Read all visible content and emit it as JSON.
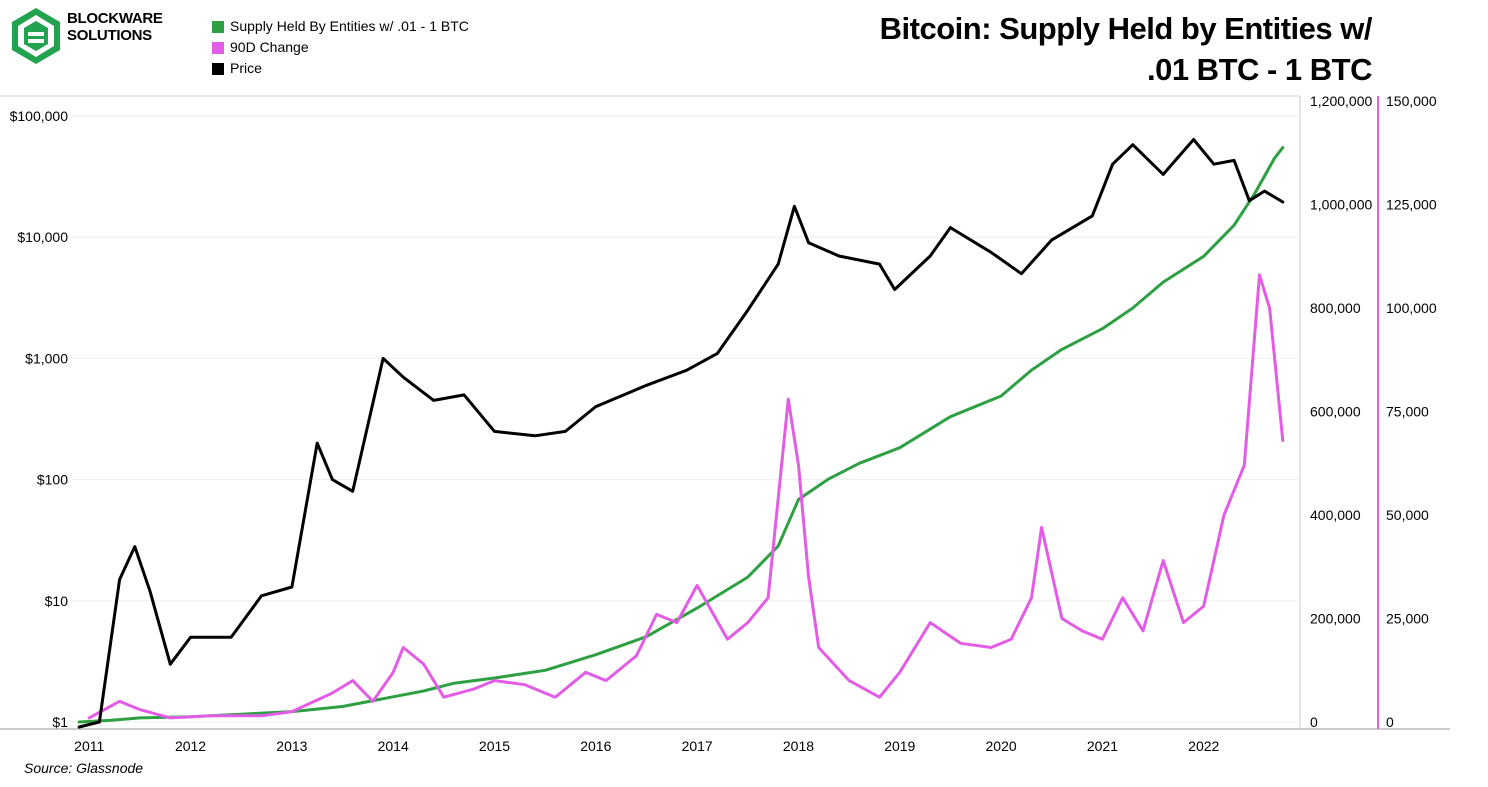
{
  "brand": {
    "line1": "BLOCKWARE",
    "line2": "SOLUTIONS"
  },
  "title": {
    "line1": "Bitcoin: Supply Held by Entities w/",
    "line2": ".01 BTC - 1 BTC"
  },
  "source": "Source: Glassnode",
  "colors": {
    "supply": "#2ea043",
    "change": "#e35ce6",
    "price": "#000000"
  },
  "chart_data": {
    "type": "line",
    "x_ticks": [
      "2011",
      "2012",
      "2013",
      "2014",
      "2015",
      "2016",
      "2017",
      "2018",
      "2019",
      "2020",
      "2021",
      "2022"
    ],
    "left_axis": {
      "scale": "log",
      "ticks": [
        "$1",
        "$10",
        "$100",
        "$1,000",
        "$10,000",
        "$100,000"
      ]
    },
    "right_axis_1": {
      "ticks": [
        "0",
        "200,000",
        "400,000",
        "600,000",
        "800,000",
        "1,000,000",
        "1,200,000"
      ],
      "range": [
        0,
        1200000
      ]
    },
    "right_axis_2": {
      "ticks": [
        "0",
        "25,000",
        "50,000",
        "75,000",
        "100,000",
        "125,000",
        "150,000"
      ],
      "range": [
        0,
        150000
      ]
    },
    "series": [
      {
        "name": "Supply Held By Entities w/ .01 - 1 BTC",
        "axis": "right_axis_1",
        "color": "#2ea043",
        "points": [
          [
            2010.9,
            0
          ],
          [
            2011.2,
            3000
          ],
          [
            2011.5,
            8000
          ],
          [
            2012.0,
            10000
          ],
          [
            2012.5,
            15000
          ],
          [
            2013.0,
            20000
          ],
          [
            2013.5,
            30000
          ],
          [
            2013.9,
            45000
          ],
          [
            2014.3,
            60000
          ],
          [
            2014.6,
            75000
          ],
          [
            2015.0,
            85000
          ],
          [
            2015.5,
            100000
          ],
          [
            2016.0,
            130000
          ],
          [
            2016.5,
            165000
          ],
          [
            2017.0,
            220000
          ],
          [
            2017.5,
            280000
          ],
          [
            2017.8,
            340000
          ],
          [
            2018.0,
            430000
          ],
          [
            2018.3,
            470000
          ],
          [
            2018.6,
            500000
          ],
          [
            2019.0,
            530000
          ],
          [
            2019.5,
            590000
          ],
          [
            2020.0,
            630000
          ],
          [
            2020.3,
            680000
          ],
          [
            2020.6,
            720000
          ],
          [
            2021.0,
            760000
          ],
          [
            2021.3,
            800000
          ],
          [
            2021.6,
            850000
          ],
          [
            2022.0,
            900000
          ],
          [
            2022.3,
            960000
          ],
          [
            2022.5,
            1020000
          ],
          [
            2022.7,
            1090000
          ],
          [
            2022.78,
            1110000
          ]
        ]
      },
      {
        "name": "90D Change",
        "axis": "right_axis_2",
        "color": "#e35ce6",
        "points": [
          [
            2011.0,
            1000
          ],
          [
            2011.3,
            5000
          ],
          [
            2011.5,
            3000
          ],
          [
            2011.8,
            1000
          ],
          [
            2012.2,
            1500
          ],
          [
            2012.7,
            1500
          ],
          [
            2013.0,
            2500
          ],
          [
            2013.4,
            7000
          ],
          [
            2013.6,
            10000
          ],
          [
            2013.8,
            5000
          ],
          [
            2014.0,
            12000
          ],
          [
            2014.1,
            18000
          ],
          [
            2014.3,
            14000
          ],
          [
            2014.5,
            6000
          ],
          [
            2014.8,
            8000
          ],
          [
            2015.0,
            10000
          ],
          [
            2015.3,
            9000
          ],
          [
            2015.6,
            6000
          ],
          [
            2015.9,
            12000
          ],
          [
            2016.1,
            10000
          ],
          [
            2016.4,
            16000
          ],
          [
            2016.6,
            26000
          ],
          [
            2016.8,
            24000
          ],
          [
            2017.0,
            33000
          ],
          [
            2017.3,
            20000
          ],
          [
            2017.5,
            24000
          ],
          [
            2017.7,
            30000
          ],
          [
            2017.9,
            78000
          ],
          [
            2018.0,
            62000
          ],
          [
            2018.1,
            35000
          ],
          [
            2018.2,
            18000
          ],
          [
            2018.5,
            10000
          ],
          [
            2018.8,
            6000
          ],
          [
            2019.0,
            12000
          ],
          [
            2019.3,
            24000
          ],
          [
            2019.6,
            19000
          ],
          [
            2019.9,
            18000
          ],
          [
            2020.1,
            20000
          ],
          [
            2020.3,
            30000
          ],
          [
            2020.4,
            47000
          ],
          [
            2020.6,
            25000
          ],
          [
            2020.8,
            22000
          ],
          [
            2021.0,
            20000
          ],
          [
            2021.2,
            30000
          ],
          [
            2021.4,
            22000
          ],
          [
            2021.6,
            39000
          ],
          [
            2021.8,
            24000
          ],
          [
            2022.0,
            28000
          ],
          [
            2022.2,
            50000
          ],
          [
            2022.4,
            62000
          ],
          [
            2022.55,
            108000
          ],
          [
            2022.65,
            100000
          ],
          [
            2022.78,
            68000
          ]
        ]
      },
      {
        "name": "Price",
        "axis": "left_axis",
        "color": "#000000",
        "points": [
          [
            2010.9,
            0.9
          ],
          [
            2011.1,
            1
          ],
          [
            2011.3,
            15
          ],
          [
            2011.45,
            28
          ],
          [
            2011.6,
            12
          ],
          [
            2011.8,
            3
          ],
          [
            2012.0,
            5
          ],
          [
            2012.4,
            5
          ],
          [
            2012.7,
            11
          ],
          [
            2013.0,
            13
          ],
          [
            2013.25,
            200
          ],
          [
            2013.4,
            100
          ],
          [
            2013.6,
            80
          ],
          [
            2013.9,
            1000
          ],
          [
            2014.1,
            700
          ],
          [
            2014.4,
            450
          ],
          [
            2014.7,
            500
          ],
          [
            2015.0,
            250
          ],
          [
            2015.4,
            230
          ],
          [
            2015.7,
            250
          ],
          [
            2016.0,
            400
          ],
          [
            2016.5,
            600
          ],
          [
            2016.9,
            800
          ],
          [
            2017.2,
            1100
          ],
          [
            2017.5,
            2500
          ],
          [
            2017.8,
            6000
          ],
          [
            2017.96,
            18000
          ],
          [
            2018.1,
            9000
          ],
          [
            2018.4,
            7000
          ],
          [
            2018.8,
            6000
          ],
          [
            2018.95,
            3700
          ],
          [
            2019.3,
            7000
          ],
          [
            2019.5,
            12000
          ],
          [
            2019.9,
            7500
          ],
          [
            2020.2,
            5000
          ],
          [
            2020.5,
            9500
          ],
          [
            2020.9,
            15000
          ],
          [
            2021.1,
            40000
          ],
          [
            2021.3,
            58000
          ],
          [
            2021.6,
            33000
          ],
          [
            2021.9,
            64000
          ],
          [
            2022.1,
            40000
          ],
          [
            2022.3,
            43000
          ],
          [
            2022.45,
            20000
          ],
          [
            2022.6,
            24000
          ],
          [
            2022.78,
            19500
          ]
        ]
      }
    ]
  }
}
